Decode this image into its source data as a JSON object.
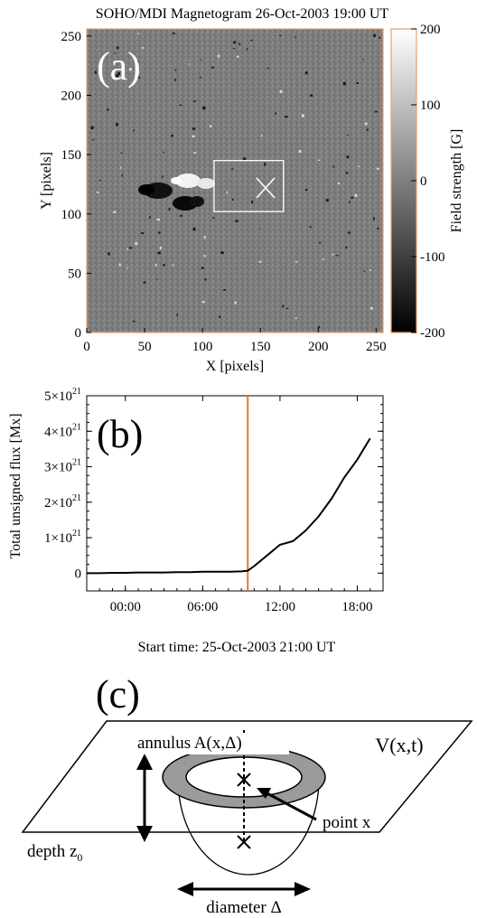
{
  "figure": {
    "panel_a": {
      "title": "SOHO/MDI Magnetogram 26-Oct-2003 19:00 UT",
      "letter": "(a)",
      "xlabel": "X [pixels]",
      "ylabel": "Y [pixels]",
      "xticks": [
        "0",
        "50",
        "100",
        "150",
        "200",
        "250"
      ],
      "yticks": [
        "0",
        "50",
        "100",
        "150",
        "200",
        "250"
      ],
      "colorbar": {
        "label": "Field strength [G]",
        "ticks": [
          "200",
          "100",
          "0",
          "-100",
          "-200"
        ],
        "range": [
          -200,
          200
        ],
        "colors": [
          "#000000",
          "#ffffff"
        ]
      },
      "region_box": {
        "x": [
          110,
          170
        ],
        "y": [
          102,
          145
        ]
      },
      "marker_point": {
        "x": 153,
        "y": 122
      },
      "frame_color": "#e9a06a"
    },
    "panel_b": {
      "letter": "(b)",
      "ylabel": "Total unsigned flux [Mx]",
      "xlabel": "Start time: 25-Oct-2003 21:00 UT",
      "ytick_mantissa": [
        "5×10",
        "4×10",
        "3×10",
        "2×10",
        "1×10",
        "0"
      ],
      "ytick_exponent": "21",
      "xticks": [
        "00:00",
        "06:00",
        "12:00",
        "18:00"
      ],
      "line_color": "#e07a2e"
    },
    "panel_c": {
      "letter": "(c)",
      "annulus_label": "annulus A(x,Δ)",
      "volume_label": "V(x,t)",
      "point_label": "point x",
      "depth_label": "depth z",
      "depth_subscript": "0",
      "diameter_label": "diameter Δ"
    }
  },
  "chart_data": [
    {
      "type": "heatmap",
      "title": "SOHO/MDI Magnetogram 26-Oct-2003 19:00 UT",
      "xlabel": "X [pixels]",
      "ylabel": "Y [pixels]",
      "xlim": [
        0,
        256
      ],
      "ylim": [
        0,
        256
      ],
      "colorbar_label": "Field strength [G]",
      "colorbar_range": [
        -200,
        200
      ]
    },
    {
      "type": "line",
      "xlabel": "Start time: 25-Oct-2003 21:00 UT",
      "ylabel": "Total unsigned flux [Mx]",
      "x_unit": "hours since 21:00 UT",
      "xlim": [
        0,
        23
      ],
      "ylim": [
        -5e+20,
        5e+21
      ],
      "xtick_hours": [
        3,
        9,
        15,
        21
      ],
      "vertical_line_x": 12.5,
      "series": [
        {
          "x": [
            0,
            1,
            2,
            3,
            4,
            5,
            6,
            7,
            8,
            9,
            10,
            11,
            12,
            12.5,
            13,
            14,
            15,
            16,
            17,
            18,
            19,
            20,
            21,
            22
          ],
          "values": [
            0,
            0,
            1e+19,
            1e+19,
            2e+19,
            2e+19,
            2e+19,
            3e+19,
            3e+19,
            4e+19,
            4e+19,
            4e+19,
            5e+19,
            7e+19,
            2e+20,
            5e+20,
            8e+20,
            9e+20,
            1.2e+21,
            1.6e+21,
            2.1e+21,
            2.7e+21,
            3.2e+21,
            3.8e+21
          ]
        }
      ]
    }
  ]
}
